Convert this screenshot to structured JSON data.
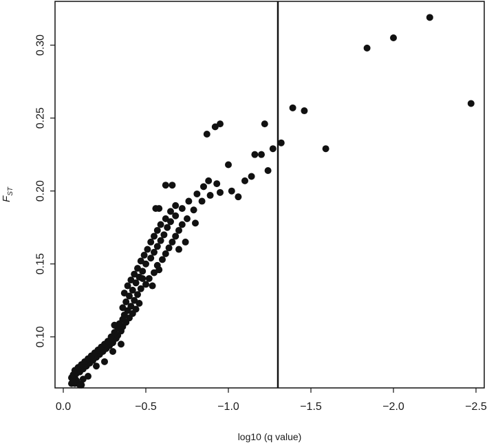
{
  "chart_data": {
    "type": "scatter",
    "title": "",
    "xlabel": "log10 (q value)",
    "ylabel_main": "F",
    "ylabel_sub": "ST",
    "xlim": [
      0.05,
      -2.55
    ],
    "ylim": [
      0.065,
      0.33
    ],
    "x_ticks": [
      0.0,
      -0.5,
      -1.0,
      -1.5,
      -2.0,
      -2.5
    ],
    "x_tick_labels": [
      "0.0",
      "−0.5",
      "−1.0",
      "−1.5",
      "−2.0",
      "−2.5"
    ],
    "y_ticks": [
      0.1,
      0.15,
      0.2,
      0.25,
      0.3
    ],
    "y_tick_labels": [
      "0.10",
      "0.15",
      "0.20",
      "0.25",
      "0.30"
    ],
    "threshold_line_x": -1.3,
    "grid": false,
    "legend": "none",
    "marker_color": "#111111",
    "points": [
      [
        -0.05,
        0.068
      ],
      [
        -0.07,
        0.068
      ],
      [
        -0.09,
        0.068
      ],
      [
        -0.11,
        0.067
      ],
      [
        -0.06,
        0.07
      ],
      [
        -0.08,
        0.07
      ],
      [
        -0.05,
        0.072
      ],
      [
        -0.07,
        0.072
      ],
      [
        -0.06,
        0.074
      ],
      [
        -0.08,
        0.075
      ],
      [
        -0.1,
        0.076
      ],
      [
        -0.07,
        0.077
      ],
      [
        -0.12,
        0.078
      ],
      [
        -0.09,
        0.079
      ],
      [
        -0.14,
        0.08
      ],
      [
        -0.11,
        0.081
      ],
      [
        -0.16,
        0.082
      ],
      [
        -0.13,
        0.083
      ],
      [
        -0.18,
        0.084
      ],
      [
        -0.15,
        0.085
      ],
      [
        -0.2,
        0.086
      ],
      [
        -0.17,
        0.087
      ],
      [
        -0.22,
        0.088
      ],
      [
        -0.19,
        0.089
      ],
      [
        -0.24,
        0.09
      ],
      [
        -0.21,
        0.091
      ],
      [
        -0.26,
        0.092
      ],
      [
        -0.23,
        0.093
      ],
      [
        -0.28,
        0.094
      ],
      [
        -0.25,
        0.095
      ],
      [
        -0.3,
        0.096
      ],
      [
        -0.27,
        0.097
      ],
      [
        -0.32,
        0.099
      ],
      [
        -0.29,
        0.1
      ],
      [
        -0.33,
        0.101
      ],
      [
        -0.31,
        0.103
      ],
      [
        -0.35,
        0.104
      ],
      [
        -0.33,
        0.106
      ],
      [
        -0.36,
        0.107
      ],
      [
        -0.34,
        0.109
      ],
      [
        -0.38,
        0.11
      ],
      [
        -0.36,
        0.112
      ],
      [
        -0.4,
        0.113
      ],
      [
        -0.37,
        0.115
      ],
      [
        -0.42,
        0.116
      ],
      [
        -0.39,
        0.118
      ],
      [
        -0.36,
        0.12
      ],
      [
        -0.41,
        0.121
      ],
      [
        -0.44,
        0.119
      ],
      [
        -0.38,
        0.124
      ],
      [
        -0.43,
        0.125
      ],
      [
        -0.46,
        0.123
      ],
      [
        -0.4,
        0.128
      ],
      [
        -0.45,
        0.129
      ],
      [
        -0.37,
        0.13
      ],
      [
        -0.42,
        0.132
      ],
      [
        -0.47,
        0.133
      ],
      [
        -0.39,
        0.135
      ],
      [
        -0.44,
        0.137
      ],
      [
        -0.5,
        0.136
      ],
      [
        -0.41,
        0.139
      ],
      [
        -0.46,
        0.141
      ],
      [
        -0.52,
        0.14
      ],
      [
        -0.43,
        0.143
      ],
      [
        -0.48,
        0.145
      ],
      [
        -0.55,
        0.144
      ],
      [
        -0.45,
        0.147
      ],
      [
        -0.5,
        0.15
      ],
      [
        -0.57,
        0.149
      ],
      [
        -0.47,
        0.152
      ],
      [
        -0.53,
        0.154
      ],
      [
        -0.6,
        0.153
      ],
      [
        -0.49,
        0.156
      ],
      [
        -0.55,
        0.158
      ],
      [
        -0.62,
        0.157
      ],
      [
        -0.51,
        0.16
      ],
      [
        -0.57,
        0.162
      ],
      [
        -0.64,
        0.161
      ],
      [
        -0.53,
        0.165
      ],
      [
        -0.59,
        0.166
      ],
      [
        -0.66,
        0.165
      ],
      [
        -0.55,
        0.169
      ],
      [
        -0.61,
        0.17
      ],
      [
        -0.68,
        0.169
      ],
      [
        -0.57,
        0.173
      ],
      [
        -0.63,
        0.175
      ],
      [
        -0.7,
        0.173
      ],
      [
        -0.59,
        0.177
      ],
      [
        -0.65,
        0.179
      ],
      [
        -0.72,
        0.177
      ],
      [
        -0.62,
        0.181
      ],
      [
        -0.68,
        0.183
      ],
      [
        -0.75,
        0.181
      ],
      [
        -0.65,
        0.186
      ],
      [
        -0.72,
        0.188
      ],
      [
        -0.79,
        0.187
      ],
      [
        -0.68,
        0.19
      ],
      [
        -0.76,
        0.193
      ],
      [
        -0.84,
        0.193
      ],
      [
        -0.81,
        0.198
      ],
      [
        -0.89,
        0.197
      ],
      [
        -0.95,
        0.199
      ],
      [
        -0.85,
        0.203
      ],
      [
        -0.93,
        0.205
      ],
      [
        -1.02,
        0.2
      ],
      [
        -1.06,
        0.196
      ],
      [
        -1.1,
        0.207
      ],
      [
        -1.14,
        0.21
      ],
      [
        -0.88,
        0.207
      ],
      [
        -1.0,
        0.218
      ],
      [
        -1.16,
        0.225
      ],
      [
        -1.2,
        0.225
      ],
      [
        -1.24,
        0.214
      ],
      [
        -1.27,
        0.229
      ],
      [
        -0.56,
        0.188
      ],
      [
        -0.58,
        0.188
      ],
      [
        -0.62,
        0.204
      ],
      [
        -0.66,
        0.204
      ],
      [
        -0.87,
        0.239
      ],
      [
        -0.92,
        0.244
      ],
      [
        -0.95,
        0.246
      ],
      [
        -1.22,
        0.246
      ],
      [
        -1.32,
        0.233
      ],
      [
        -1.39,
        0.257
      ],
      [
        -1.46,
        0.255
      ],
      [
        -1.59,
        0.229
      ],
      [
        -1.84,
        0.298
      ],
      [
        -2.0,
        0.305
      ],
      [
        -2.22,
        0.319
      ],
      [
        -2.47,
        0.26
      ],
      [
        -0.1,
        0.067
      ],
      [
        -0.06,
        0.069
      ],
      [
        -0.12,
        0.071
      ],
      [
        -0.15,
        0.073
      ],
      [
        -0.2,
        0.08
      ],
      [
        -0.25,
        0.083
      ],
      [
        -0.3,
        0.09
      ],
      [
        -0.35,
        0.095
      ],
      [
        -0.31,
        0.108
      ],
      [
        -0.48,
        0.14
      ],
      [
        -0.74,
        0.165
      ],
      [
        -0.8,
        0.178
      ],
      [
        -0.7,
        0.16
      ],
      [
        -0.54,
        0.135
      ],
      [
        -0.58,
        0.146
      ]
    ]
  }
}
